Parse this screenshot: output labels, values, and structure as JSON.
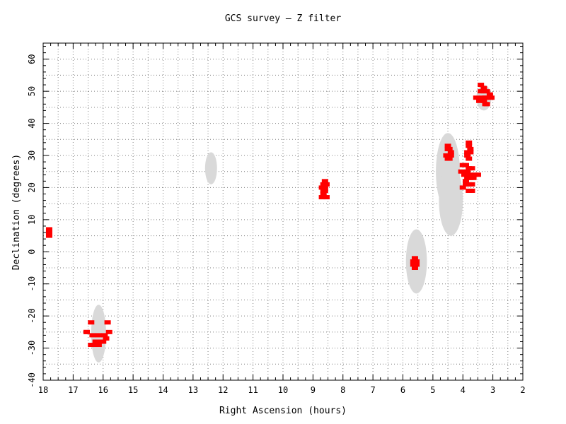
{
  "chart_data": {
    "type": "scatter",
    "title": "GCS survey — Z filter",
    "xlabel": "Right Ascension (hours)",
    "ylabel": "Declination (degrees)",
    "xlim": [
      18,
      2
    ],
    "ylim": [
      -40,
      65
    ],
    "x_ticks": [
      18,
      17,
      16,
      15,
      14,
      13,
      12,
      11,
      10,
      9,
      8,
      7,
      6,
      5,
      4,
      3,
      2
    ],
    "y_ticks": [
      -40,
      -30,
      -20,
      -10,
      0,
      10,
      20,
      30,
      40,
      50,
      60
    ],
    "grid": true,
    "colors": {
      "points": "#ff0000",
      "regions": "#d9d9d9",
      "grid": "#7f7f7f"
    },
    "regions": [
      {
        "ra": 3.3,
        "dec": 48,
        "ra_radius": 0.25,
        "dec_radius": 4
      },
      {
        "ra": 4.5,
        "dec": 25,
        "ra_radius": 0.4,
        "dec_radius": 12
      },
      {
        "ra": 4.4,
        "dec": 16,
        "ra_radius": 0.4,
        "dec_radius": 11
      },
      {
        "ra": 5.55,
        "dec": -3,
        "ra_radius": 0.35,
        "dec_radius": 10
      },
      {
        "ra": 12.4,
        "dec": 26,
        "ra_radius": 0.2,
        "dec_radius": 5
      },
      {
        "ra": 16.15,
        "dec": -25.5,
        "ra_radius": 0.25,
        "dec_radius": 9
      }
    ],
    "series": [
      {
        "x": [
          17.8,
          17.8,
          17.8,
          8.65,
          8.55,
          8.7,
          8.6,
          8.65,
          8.55,
          8.7,
          8.6,
          8.65,
          8.6,
          5.65,
          5.55,
          5.6,
          5.6,
          5.65,
          5.55,
          4.5,
          4.4,
          4.55,
          4.45,
          4.5,
          4.45,
          4.4,
          4.5,
          3.8,
          3.75,
          3.85,
          3.8,
          3.75,
          3.8,
          3.85,
          4.0,
          3.9,
          3.8,
          3.7,
          3.6,
          4.05,
          3.95,
          3.85,
          3.75,
          3.65,
          3.9,
          3.8,
          3.7,
          3.8,
          3.5,
          4.0,
          3.7,
          3.75,
          3.85,
          3.9,
          3.4,
          3.3,
          3.2,
          3.1,
          3.35,
          3.25,
          3.15,
          3.05,
          3.45,
          3.3,
          3.2,
          3.3,
          3.55,
          3.4,
          3.25,
          16.4,
          15.85,
          16.55,
          16.35,
          16.15,
          15.95,
          15.8,
          16.55,
          16.3,
          16.15,
          16.0,
          16.4,
          16.25,
          16.05,
          15.9
        ],
        "y": [
          6,
          7,
          5,
          21,
          21,
          20,
          19,
          18,
          17,
          17,
          22,
          19,
          20,
          -3,
          -4,
          -5,
          -2,
          -4,
          -3,
          32,
          31,
          30,
          29,
          33,
          32,
          30,
          29,
          33,
          31,
          30,
          29,
          32,
          34,
          31,
          27,
          27,
          26,
          26,
          24,
          25,
          24,
          23,
          23,
          23,
          21,
          21,
          21,
          19,
          24,
          20,
          19,
          24,
          25,
          22,
          50,
          50,
          50,
          49,
          48,
          48,
          48,
          48,
          47,
          47,
          46,
          51,
          48,
          52,
          46,
          -22,
          -22,
          -25,
          -26,
          -26,
          -26,
          -25,
          -25,
          -29,
          -29,
          -28,
          -29,
          -28,
          -28,
          -27
        ]
      }
    ]
  }
}
